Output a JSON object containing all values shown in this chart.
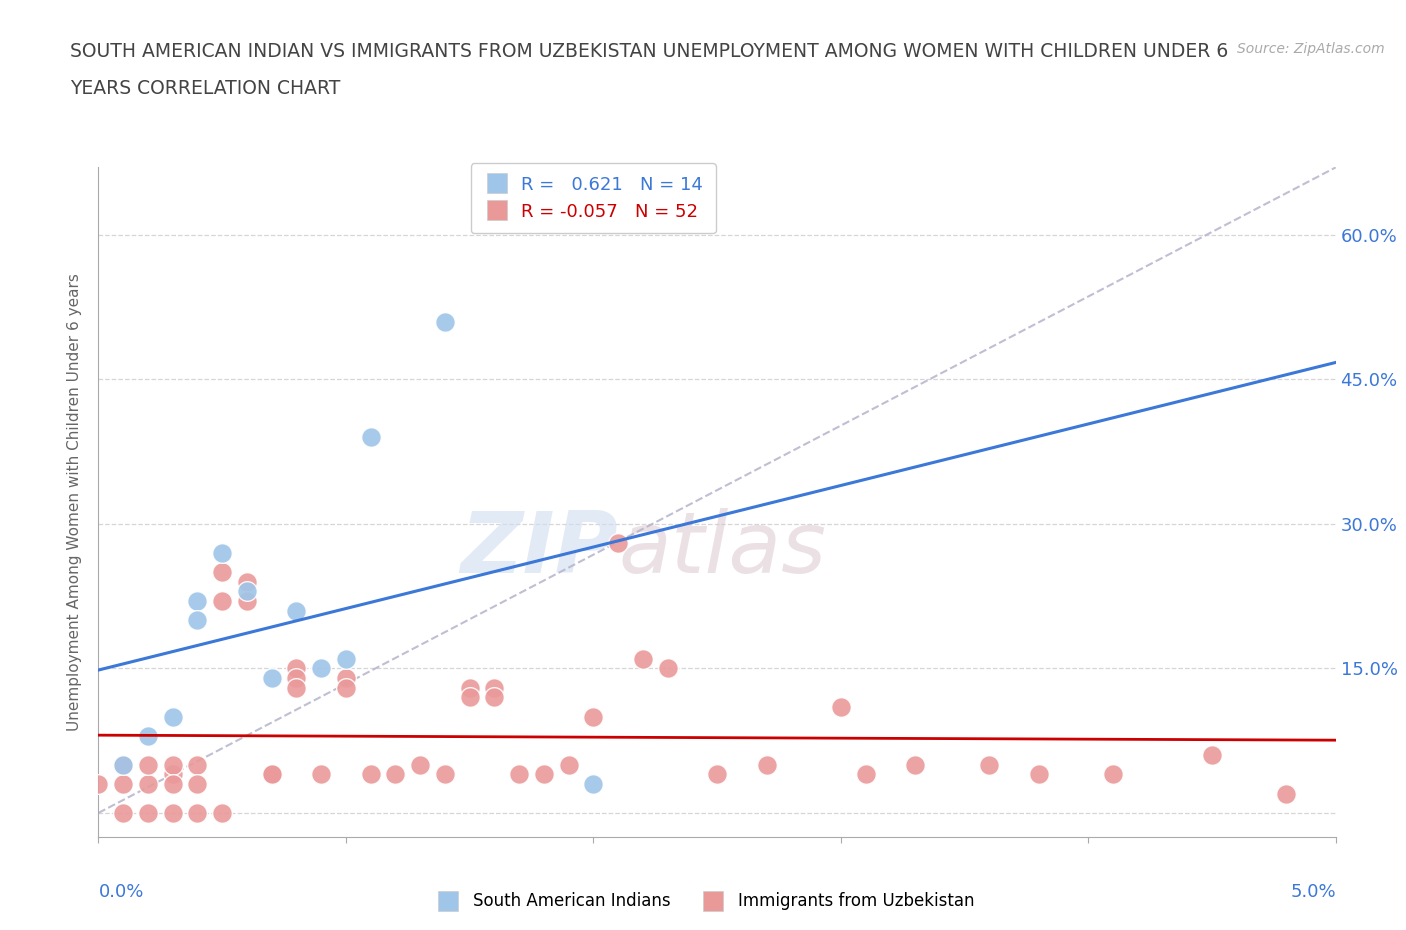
{
  "title_line1": "SOUTH AMERICAN INDIAN VS IMMIGRANTS FROM UZBEKISTAN UNEMPLOYMENT AMONG WOMEN WITH CHILDREN UNDER 6",
  "title_line2": "YEARS CORRELATION CHART",
  "source": "Source: ZipAtlas.com",
  "ylabel": "Unemployment Among Women with Children Under 6 years",
  "yticks": [
    0.0,
    0.15,
    0.3,
    0.45,
    0.6
  ],
  "ytick_labels": [
    "",
    "15.0%",
    "30.0%",
    "45.0%",
    "60.0%"
  ],
  "xlim": [
    0.0,
    0.05
  ],
  "ylim": [
    -0.025,
    0.67
  ],
  "legend_blue_r": "R =   0.621",
  "legend_blue_n": "N = 14",
  "legend_pink_r": "R = -0.057",
  "legend_pink_n": "N = 52",
  "blue_color": "#9fc5e8",
  "pink_color": "#ea9999",
  "blue_line_color": "#3c78d8",
  "pink_line_color": "#cc0000",
  "diagonal_color": "#b4b4cc",
  "watermark_zip": "ZIP",
  "watermark_atlas": "atlas",
  "blue_scatter_x": [
    0.001,
    0.002,
    0.003,
    0.004,
    0.004,
    0.005,
    0.006,
    0.007,
    0.008,
    0.009,
    0.01,
    0.011,
    0.014,
    0.02
  ],
  "blue_scatter_y": [
    0.05,
    0.08,
    0.1,
    0.22,
    0.2,
    0.27,
    0.23,
    0.14,
    0.21,
    0.15,
    0.16,
    0.39,
    0.51,
    0.03
  ],
  "pink_scatter_x": [
    0.0,
    0.001,
    0.001,
    0.001,
    0.002,
    0.002,
    0.002,
    0.003,
    0.003,
    0.003,
    0.003,
    0.004,
    0.004,
    0.004,
    0.005,
    0.005,
    0.005,
    0.006,
    0.006,
    0.007,
    0.007,
    0.008,
    0.008,
    0.008,
    0.009,
    0.01,
    0.01,
    0.011,
    0.012,
    0.013,
    0.014,
    0.015,
    0.015,
    0.016,
    0.016,
    0.017,
    0.018,
    0.019,
    0.02,
    0.021,
    0.022,
    0.023,
    0.025,
    0.027,
    0.03,
    0.031,
    0.033,
    0.036,
    0.038,
    0.041,
    0.045,
    0.048
  ],
  "pink_scatter_y": [
    0.03,
    0.05,
    0.03,
    0.0,
    0.03,
    0.05,
    0.0,
    0.04,
    0.05,
    0.03,
    0.0,
    0.05,
    0.03,
    0.0,
    0.25,
    0.22,
    0.0,
    0.24,
    0.22,
    0.04,
    0.04,
    0.15,
    0.14,
    0.13,
    0.04,
    0.14,
    0.13,
    0.04,
    0.04,
    0.05,
    0.04,
    0.13,
    0.12,
    0.13,
    0.12,
    0.04,
    0.04,
    0.05,
    0.1,
    0.28,
    0.16,
    0.15,
    0.04,
    0.05,
    0.11,
    0.04,
    0.05,
    0.05,
    0.04,
    0.04,
    0.06,
    0.02
  ],
  "background_color": "#ffffff",
  "grid_color": "#cccccc"
}
